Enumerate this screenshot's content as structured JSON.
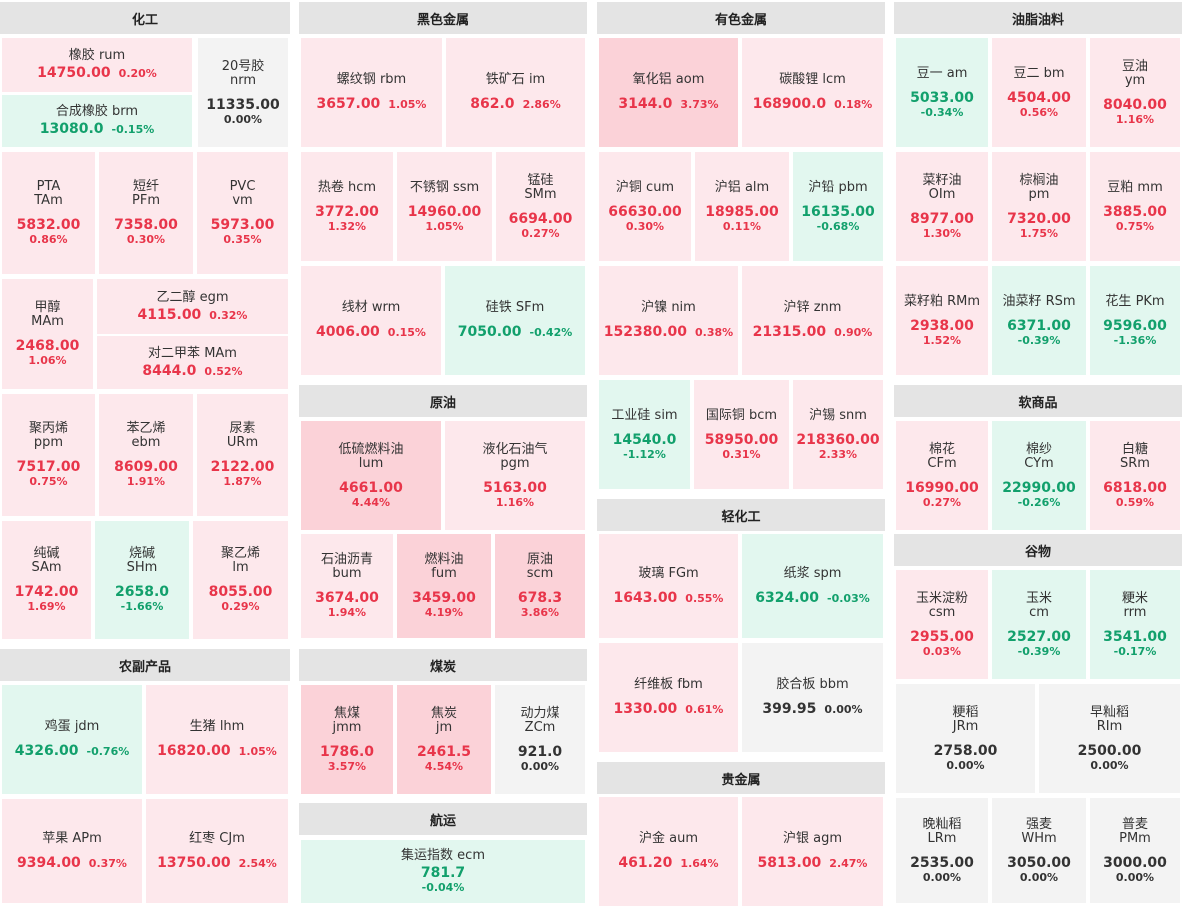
{
  "colors": {
    "up_bg": "#fde8ec",
    "up_strong_bg": "#fbd2d8",
    "down_bg": "#e2f7ef",
    "flat_bg": "#f3f3f3",
    "header_bg": "#e4e4e4",
    "up_text": "#e8354a",
    "down_text": "#12a06c",
    "flat_text": "#333333"
  },
  "sections": {
    "chemical": "化工",
    "ferrous": "黑色金属",
    "nonferrous": "有色金属",
    "oils": "油脂油料",
    "crude": "原油",
    "softs": "软商品",
    "light": "轻化工",
    "grains": "谷物",
    "agri": "农副产品",
    "coal": "煤炭",
    "precious": "贵金属",
    "shipping": "航运"
  },
  "items": {
    "rum": {
      "name": "橡胶",
      "code": "rum",
      "price": "14750.00",
      "pct": "0.20%",
      "dir": "up"
    },
    "nrm": {
      "name": "20号胶",
      "code": "nrm",
      "price": "11335.00",
      "pct": "0.00%",
      "dir": "flat"
    },
    "brm": {
      "name": "合成橡胶",
      "code": "brm",
      "price": "13080.0",
      "pct": "-0.15%",
      "dir": "down"
    },
    "tam": {
      "name": "PTA",
      "code": "TAm",
      "price": "5832.00",
      "pct": "0.86%",
      "dir": "up"
    },
    "pfm": {
      "name": "短纤",
      "code": "PFm",
      "price": "7358.00",
      "pct": "0.30%",
      "dir": "up"
    },
    "vm": {
      "name": "PVC",
      "code": "vm",
      "price": "5973.00",
      "pct": "0.35%",
      "dir": "up"
    },
    "mam": {
      "name": "甲醇",
      "code": "MAm",
      "price": "2468.00",
      "pct": "1.06%",
      "dir": "up"
    },
    "egm": {
      "name": "乙二醇",
      "code": "egm",
      "price": "4115.00",
      "pct": "0.32%",
      "dir": "up"
    },
    "pxm": {
      "name": "对二甲苯",
      "code": "MAm",
      "price": "8444.0",
      "pct": "0.52%",
      "dir": "up"
    },
    "ppm": {
      "name": "聚丙烯",
      "code": "ppm",
      "price": "7517.00",
      "pct": "0.75%",
      "dir": "up"
    },
    "ebm": {
      "name": "苯乙烯",
      "code": "ebm",
      "price": "8609.00",
      "pct": "1.91%",
      "dir": "up"
    },
    "urm": {
      "name": "尿素",
      "code": "URm",
      "price": "2122.00",
      "pct": "1.87%",
      "dir": "up"
    },
    "sam": {
      "name": "纯碱",
      "code": "SAm",
      "price": "1742.00",
      "pct": "1.69%",
      "dir": "up"
    },
    "shm": {
      "name": "烧碱",
      "code": "SHm",
      "price": "2658.0",
      "pct": "-1.66%",
      "dir": "down"
    },
    "lm": {
      "name": "聚乙烯",
      "code": "lm",
      "price": "8055.00",
      "pct": "0.29%",
      "dir": "up"
    },
    "rbm": {
      "name": "螺纹钢",
      "code": "rbm",
      "price": "3657.00",
      "pct": "1.05%",
      "dir": "up"
    },
    "im": {
      "name": "铁矿石",
      "code": "im",
      "price": "862.0",
      "pct": "2.86%",
      "dir": "up"
    },
    "hcm": {
      "name": "热卷",
      "code": "hcm",
      "price": "3772.00",
      "pct": "1.32%",
      "dir": "up"
    },
    "ssm": {
      "name": "不锈钢",
      "code": "ssm",
      "price": "14960.00",
      "pct": "1.05%",
      "dir": "up"
    },
    "smm": {
      "name": "锰硅",
      "code": "SMm",
      "price": "6694.00",
      "pct": "0.27%",
      "dir": "up"
    },
    "wrm": {
      "name": "线材",
      "code": "wrm",
      "price": "4006.00",
      "pct": "0.15%",
      "dir": "up"
    },
    "sfm": {
      "name": "硅铁",
      "code": "SFm",
      "price": "7050.00",
      "pct": "-0.42%",
      "dir": "down"
    },
    "aom": {
      "name": "氧化铝",
      "code": "aom",
      "price": "3144.0",
      "pct": "3.73%",
      "dir": "up2"
    },
    "lcm": {
      "name": "碳酸锂",
      "code": "lcm",
      "price": "168900.0",
      "pct": "0.18%",
      "dir": "up"
    },
    "cum": {
      "name": "沪铜",
      "code": "cum",
      "price": "66630.00",
      "pct": "0.30%",
      "dir": "up"
    },
    "alm": {
      "name": "沪铝",
      "code": "alm",
      "price": "18985.00",
      "pct": "0.11%",
      "dir": "up"
    },
    "pbm": {
      "name": "沪铅",
      "code": "pbm",
      "price": "16135.00",
      "pct": "-0.68%",
      "dir": "down"
    },
    "nim": {
      "name": "沪镍",
      "code": "nim",
      "price": "152380.00",
      "pct": "0.38%",
      "dir": "up"
    },
    "znm": {
      "name": "沪锌",
      "code": "znm",
      "price": "21315.00",
      "pct": "0.90%",
      "dir": "up"
    },
    "sim": {
      "name": "工业硅",
      "code": "sim",
      "price": "14540.0",
      "pct": "-1.12%",
      "dir": "down"
    },
    "bcm": {
      "name": "国际铜",
      "code": "bcm",
      "price": "58950.00",
      "pct": "0.31%",
      "dir": "up"
    },
    "snm": {
      "name": "沪锡",
      "code": "snm",
      "price": "218360.00",
      "pct": "2.33%",
      "dir": "up"
    },
    "am": {
      "name": "豆一",
      "code": "am",
      "price": "5033.00",
      "pct": "-0.34%",
      "dir": "down"
    },
    "bm": {
      "name": "豆二",
      "code": "bm",
      "price": "4504.00",
      "pct": "0.56%",
      "dir": "up"
    },
    "ym": {
      "name": "豆油",
      "code": "ym",
      "price": "8040.00",
      "pct": "1.16%",
      "dir": "up"
    },
    "olm": {
      "name": "菜籽油",
      "code": "OIm",
      "price": "8977.00",
      "pct": "1.30%",
      "dir": "up"
    },
    "pm": {
      "name": "棕榈油",
      "code": "pm",
      "price": "7320.00",
      "pct": "1.75%",
      "dir": "up"
    },
    "mm": {
      "name": "豆粕",
      "code": "mm",
      "price": "3885.00",
      "pct": "0.75%",
      "dir": "up"
    },
    "rmm": {
      "name": "菜籽粕",
      "code": "RMm",
      "price": "2938.00",
      "pct": "1.52%",
      "dir": "up"
    },
    "rsm": {
      "name": "油菜籽",
      "code": "RSm",
      "price": "6371.00",
      "pct": "-0.39%",
      "dir": "down"
    },
    "pkm": {
      "name": "花生",
      "code": "PKm",
      "price": "9596.00",
      "pct": "-1.36%",
      "dir": "down"
    },
    "lum": {
      "name": "低硫燃料油",
      "code": "lum",
      "price": "4661.00",
      "pct": "4.44%",
      "dir": "up2"
    },
    "pgm": {
      "name": "液化石油气",
      "code": "pgm",
      "price": "5163.00",
      "pct": "1.16%",
      "dir": "up"
    },
    "bum": {
      "name": "石油沥青",
      "code": "bum",
      "price": "3674.00",
      "pct": "1.94%",
      "dir": "up"
    },
    "fum": {
      "name": "燃料油",
      "code": "fum",
      "price": "3459.00",
      "pct": "4.19%",
      "dir": "up2"
    },
    "scm": {
      "name": "原油",
      "code": "scm",
      "price": "678.3",
      "pct": "3.86%",
      "dir": "up2"
    },
    "cfm": {
      "name": "棉花",
      "code": "CFm",
      "price": "16990.00",
      "pct": "0.27%",
      "dir": "up"
    },
    "cym": {
      "name": "棉纱",
      "code": "CYm",
      "price": "22990.00",
      "pct": "-0.26%",
      "dir": "down"
    },
    "srm": {
      "name": "白糖",
      "code": "SRm",
      "price": "6818.00",
      "pct": "0.59%",
      "dir": "up"
    },
    "fgm": {
      "name": "玻璃",
      "code": "FGm",
      "price": "1643.00",
      "pct": "0.55%",
      "dir": "up"
    },
    "spm": {
      "name": "纸浆",
      "code": "spm",
      "price": "6324.00",
      "pct": "-0.03%",
      "dir": "down"
    },
    "fbm": {
      "name": "纤维板",
      "code": "fbm",
      "price": "1330.00",
      "pct": "0.61%",
      "dir": "up"
    },
    "bbm": {
      "name": "胶合板",
      "code": "bbm",
      "price": "399.95",
      "pct": "0.00%",
      "dir": "flat"
    },
    "csm": {
      "name": "玉米淀粉",
      "code": "csm",
      "price": "2955.00",
      "pct": "0.03%",
      "dir": "up"
    },
    "cm": {
      "name": "玉米",
      "code": "cm",
      "price": "2527.00",
      "pct": "-0.39%",
      "dir": "down"
    },
    "rrm": {
      "name": "粳米",
      "code": "rrm",
      "price": "3541.00",
      "pct": "-0.17%",
      "dir": "down"
    },
    "jrm": {
      "name": "粳稻",
      "code": "JRm",
      "price": "2758.00",
      "pct": "0.00%",
      "dir": "flat"
    },
    "rim": {
      "name": "早籼稻",
      "code": "RIm",
      "price": "2500.00",
      "pct": "0.00%",
      "dir": "flat"
    },
    "lrm": {
      "name": "晚籼稻",
      "code": "LRm",
      "price": "2535.00",
      "pct": "0.00%",
      "dir": "flat"
    },
    "whm": {
      "name": "强麦",
      "code": "WHm",
      "price": "3050.00",
      "pct": "0.00%",
      "dir": "flat"
    },
    "pmm": {
      "name": "普麦",
      "code": "PMm",
      "price": "3000.00",
      "pct": "0.00%",
      "dir": "flat"
    },
    "jdm": {
      "name": "鸡蛋",
      "code": "jdm",
      "price": "4326.00",
      "pct": "-0.76%",
      "dir": "down"
    },
    "lhm": {
      "name": "生猪",
      "code": "lhm",
      "price": "16820.00",
      "pct": "1.05%",
      "dir": "up"
    },
    "apm": {
      "name": "苹果",
      "code": "APm",
      "price": "9394.00",
      "pct": "0.37%",
      "dir": "up"
    },
    "cjm": {
      "name": "红枣",
      "code": "CJm",
      "price": "13750.00",
      "pct": "2.54%",
      "dir": "up"
    },
    "jmm": {
      "name": "焦煤",
      "code": "jmm",
      "price": "1786.0",
      "pct": "3.57%",
      "dir": "up2"
    },
    "jm": {
      "name": "焦炭",
      "code": "jm",
      "price": "2461.5",
      "pct": "4.54%",
      "dir": "up2"
    },
    "zcm": {
      "name": "动力煤",
      "code": "ZCm",
      "price": "921.0",
      "pct": "0.00%",
      "dir": "flat"
    },
    "aum": {
      "name": "沪金",
      "code": "aum",
      "price": "461.20",
      "pct": "1.64%",
      "dir": "up"
    },
    "agm": {
      "name": "沪银",
      "code": "agm",
      "price": "5813.00",
      "pct": "2.47%",
      "dir": "up"
    },
    "ecm": {
      "name": "集运指数",
      "code": "ecm",
      "price": "781.7",
      "pct": "-0.04%",
      "dir": "down"
    }
  }
}
